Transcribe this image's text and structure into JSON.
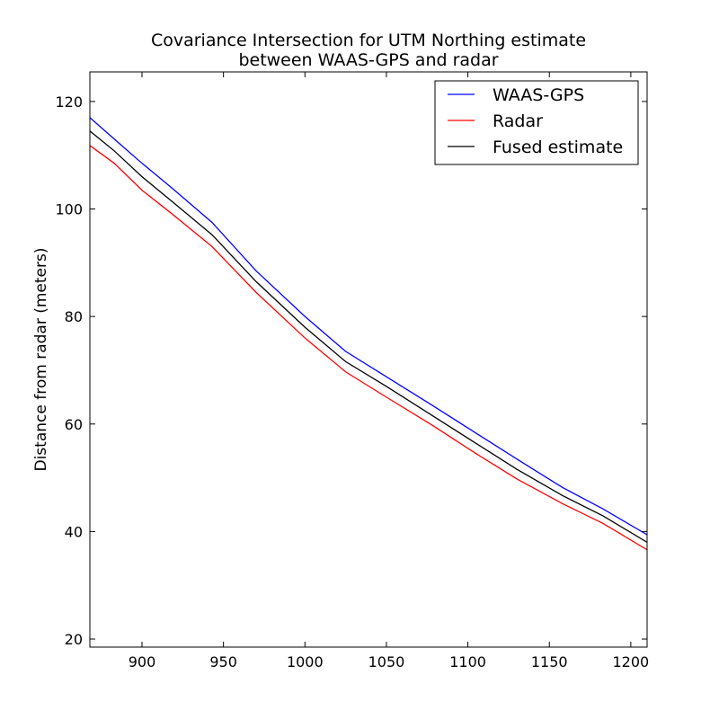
{
  "chart_data": {
    "type": "line",
    "title_line1": "Covariance Intersection for UTM Northing estimate",
    "title_line2": "between WAAS-GPS and radar",
    "xlabel": "",
    "ylabel": "Distance from radar (meters)",
    "xlim": [
      868,
      1210
    ],
    "ylim": [
      18.5,
      125.5
    ],
    "xticks": [
      900,
      950,
      1000,
      1050,
      1100,
      1150,
      1200
    ],
    "yticks": [
      20,
      40,
      60,
      80,
      100,
      120
    ],
    "grid": false,
    "legend_position": "top-right",
    "series": [
      {
        "name": "WAAS-GPS",
        "color": "#0000ff",
        "x": [
          868,
          883,
          900,
          918,
          943,
          970,
          1000,
          1025,
          1050,
          1078,
          1105,
          1130,
          1158,
          1183,
          1210
        ],
        "y": [
          117,
          113,
          108.5,
          104,
          97.5,
          88.5,
          80,
          73.5,
          68.8,
          63.5,
          58.3,
          53.5,
          48.2,
          44.2,
          39.4
        ]
      },
      {
        "name": "Radar",
        "color": "#ff0000",
        "x": [
          868,
          883,
          900,
          918,
          943,
          970,
          1000,
          1025,
          1050,
          1078,
          1105,
          1130,
          1158,
          1183,
          1210
        ],
        "y": [
          111.8,
          108.5,
          103.5,
          99.2,
          93,
          84.5,
          76,
          69.7,
          65,
          59.8,
          54.5,
          49.8,
          45.2,
          41.5,
          36.6
        ]
      },
      {
        "name": "Fused estimate",
        "color": "#000000",
        "x": [
          868,
          883,
          900,
          918,
          943,
          970,
          1000,
          1025,
          1050,
          1078,
          1105,
          1130,
          1158,
          1183,
          1210
        ],
        "y": [
          114.5,
          110.8,
          106,
          101.5,
          95.2,
          86.5,
          78,
          71.6,
          67,
          61.6,
          56.4,
          51.6,
          46.7,
          42.9,
          38
        ]
      }
    ]
  }
}
